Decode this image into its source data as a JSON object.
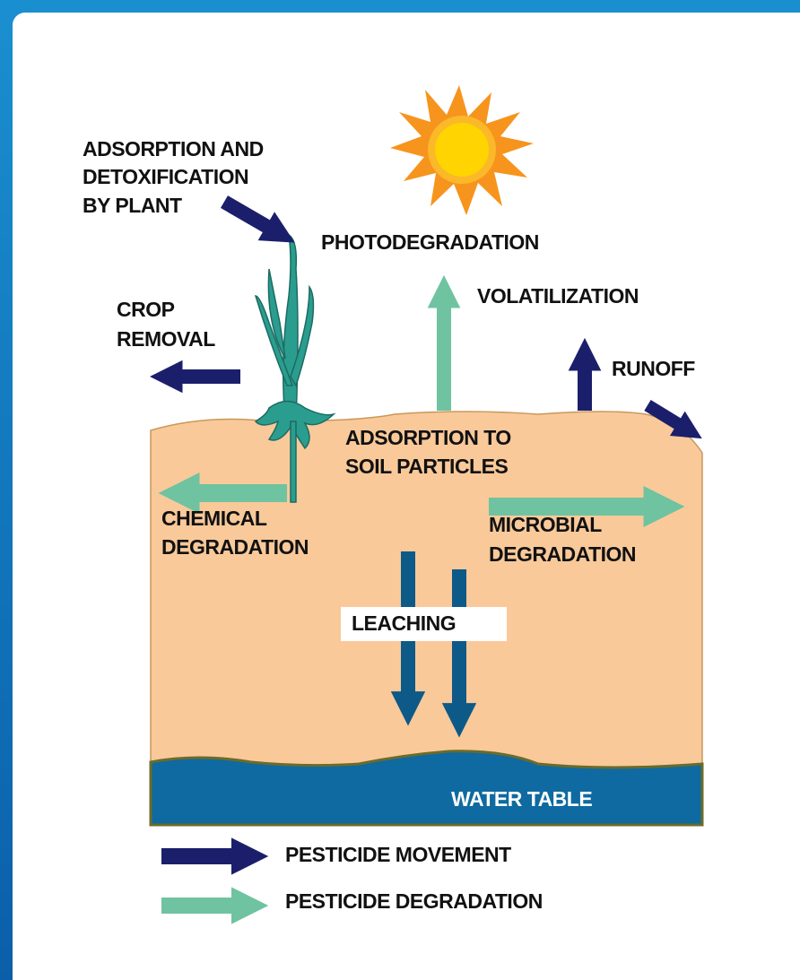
{
  "plant_label": [
    "ADSORPTION AND",
    "DETOXIFICATION",
    "BY PLANT"
  ],
  "photodegradation": "PHOTODEGRADATION",
  "volatilization": "VOLATILIZATION",
  "crop_removal": [
    "CROP",
    "REMOVAL"
  ],
  "runoff": "RUNOFF",
  "soil_adsorption": [
    "ADSORPTION TO",
    "SOIL PARTICLES"
  ],
  "chemical_degradation": [
    "CHEMICAL",
    "DEGRADATION"
  ],
  "microbial_degradation": [
    "MICROBIAL",
    "DEGRADATION"
  ],
  "leaching": "LEACHING",
  "water_table": "WATER TABLE",
  "legend": [
    {
      "label": "PESTICIDE MOVEMENT"
    },
    {
      "label": "PESTICIDE DEGRADATION"
    }
  ]
}
